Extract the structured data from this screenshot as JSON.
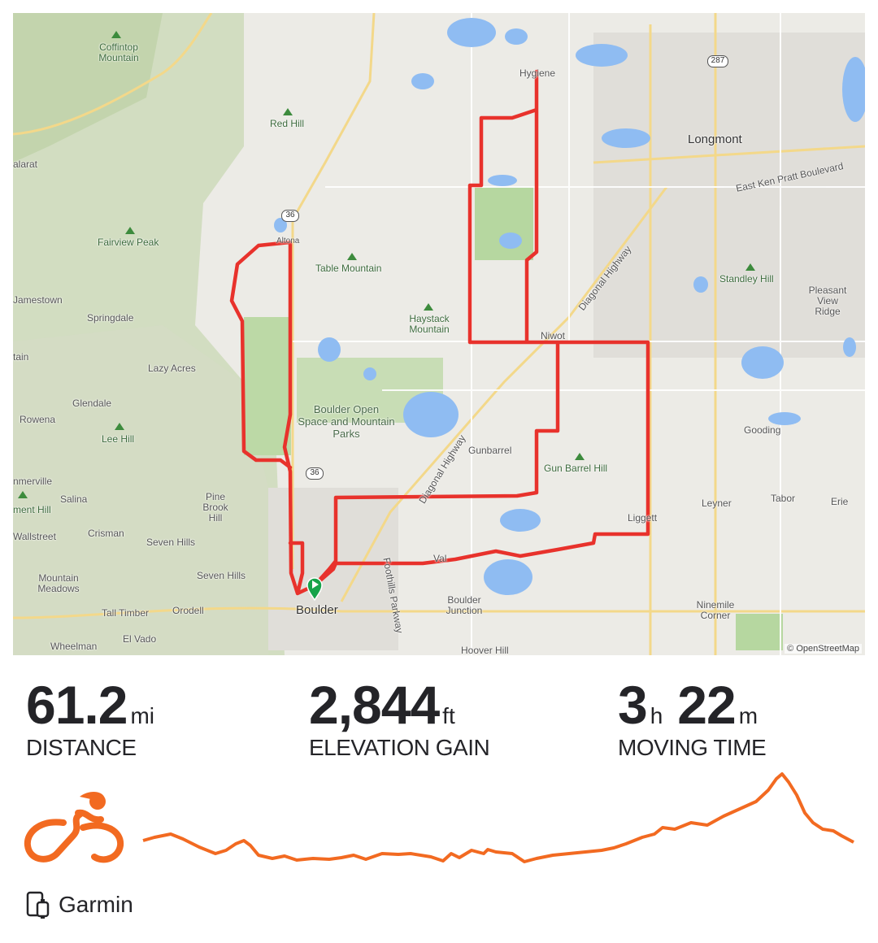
{
  "map": {
    "attribution": "© OpenStreetMap",
    "labels": {
      "coffintop": "Coffintop Mountain",
      "redhill": "Red Hill",
      "calarat": "alarat",
      "fairview": "Fairview Peak",
      "jamestown": "Jamestown",
      "springdale": "Springdale",
      "tain": "tain",
      "lazyacres": "Lazy Acres",
      "glendale": "Glendale",
      "rowena": "Rowena",
      "leehill": "Lee Hill",
      "nmerville": "nmerville",
      "salina": "Salina",
      "mentHill": "ment Hill",
      "wallstreet": "Wallstreet",
      "crisman": "Crisman",
      "pinebrook": "Pine Brook Hill",
      "sevenhills1": "Seven Hills",
      "sevenhills2": "Seven Hills",
      "mountainmeadows": "Mountain Meadows",
      "talltimber": "Tall Timber",
      "orodell": "Orodell",
      "wheelman": "Wheelman",
      "elvado": "El Vado",
      "boulder": "Boulder",
      "table": "Table Mountain",
      "haystack": "Haystack Mountain",
      "osmp": "Boulder Open Space and Mountain Parks",
      "hygiene": "Hygiene",
      "niwot": "Niwot",
      "gunbarrel": "Gunbarrel",
      "gunbarrelhill": "Gun Barrel Hill",
      "diagonal1": "Diagonal Highway",
      "diagonal2": "Diagonal Highway",
      "foothills": "Foothills Parkway",
      "valmont": "Val",
      "liggett": "Liggett",
      "boulderjunction": "Boulder Junction",
      "hooverhill": "Hoover Hill",
      "longmont": "Longmont",
      "kenpratt": "East Ken Pratt Boulevard",
      "standley": "Standley Hill",
      "pleasantview": "Pleasant View Ridge",
      "gooding": "Gooding",
      "leyner": "Leyner",
      "tabor": "Tabor",
      "erie": "Erie",
      "ninemile": "Ninemile Corner",
      "hwy36a": "36",
      "hwy36b": "36",
      "hwy287": "287",
      "lyons": "Altona"
    }
  },
  "stats": {
    "distance": {
      "value": "61.2",
      "unit": "mi",
      "label": "DISTANCE"
    },
    "elevation": {
      "value": "2,844",
      "unit": "ft",
      "label": "ELEVATION GAIN"
    },
    "time": {
      "hours": "3",
      "hours_unit": "h",
      "minutes": "22",
      "minutes_unit": "m",
      "label": "MOVING TIME"
    }
  },
  "activity_type_icon": "cycling-icon",
  "device": {
    "icon": "device-sync-icon",
    "name": "Garmin"
  },
  "colors": {
    "route": "#e8322c",
    "accent": "#fc5200",
    "profile": "#f26a21",
    "start_marker": "#16a34a"
  }
}
